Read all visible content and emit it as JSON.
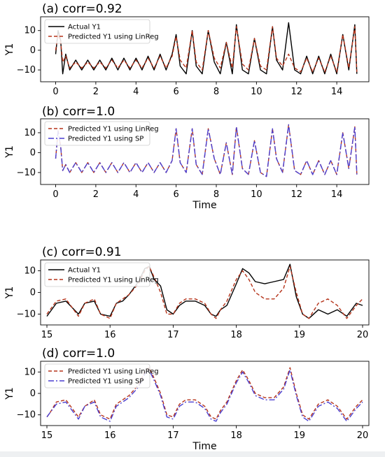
{
  "chart_data": [
    {
      "type": "line",
      "title": "(a) corr=0.92",
      "xlabel": "",
      "ylabel": "Y1",
      "xlim": [
        -0.75,
        15.6
      ],
      "ylim": [
        -16,
        17
      ],
      "xticks": [
        0,
        2,
        4,
        6,
        8,
        10,
        12,
        14
      ],
      "yticks": [
        -10,
        0,
        10
      ],
      "legend_position": "upper-left",
      "series": [
        {
          "name": "Actual Y1",
          "style": "solid",
          "color": "#000000",
          "x": [
            0.0,
            0.12,
            0.25,
            0.35,
            0.5,
            0.7,
            1.0,
            1.3,
            1.6,
            1.9,
            2.2,
            2.5,
            2.8,
            3.1,
            3.4,
            3.7,
            4.0,
            4.3,
            4.6,
            4.9,
            5.2,
            5.5,
            5.8,
            6.0,
            6.2,
            6.5,
            6.8,
            7.0,
            7.3,
            7.6,
            7.9,
            8.2,
            8.5,
            8.8,
            9.0,
            9.3,
            9.6,
            9.9,
            10.2,
            10.5,
            10.8,
            11.0,
            11.3,
            11.6,
            11.9,
            12.2,
            12.5,
            12.8,
            13.1,
            13.4,
            13.7,
            14.0,
            14.3,
            14.6,
            14.9,
            15.0
          ],
          "y": [
            -2,
            10,
            5,
            -12,
            -2,
            -10,
            -5,
            -10,
            -5,
            -10,
            -5,
            -10,
            -4,
            -10,
            -4,
            -10,
            -4,
            -10,
            -3,
            -10,
            -2,
            -10,
            -2,
            8,
            -8,
            -12,
            10,
            -8,
            -12,
            10,
            -6,
            -12,
            4,
            -12,
            13,
            -10,
            -12,
            6,
            -10,
            -12,
            12,
            -5,
            -10,
            14,
            -10,
            -12,
            -3,
            -12,
            -3,
            -12,
            -2,
            -12,
            8,
            -10,
            13,
            -12
          ]
        },
        {
          "name": "Predicted Y1 using LinReg",
          "style": "dashed",
          "color": "#b5331a",
          "x": [
            0.0,
            0.12,
            0.25,
            0.35,
            0.5,
            0.7,
            1.0,
            1.3,
            1.6,
            1.9,
            2.2,
            2.5,
            2.8,
            3.1,
            3.4,
            3.7,
            4.0,
            4.3,
            4.6,
            4.9,
            5.2,
            5.5,
            5.8,
            6.0,
            6.2,
            6.5,
            6.8,
            7.0,
            7.3,
            7.6,
            7.9,
            8.2,
            8.5,
            8.8,
            9.0,
            9.3,
            9.6,
            9.9,
            10.2,
            10.5,
            10.8,
            11.0,
            11.3,
            11.6,
            11.9,
            12.2,
            12.5,
            12.8,
            13.1,
            13.4,
            13.7,
            14.0,
            14.3,
            14.6,
            14.9,
            15.0
          ],
          "y": [
            0,
            8,
            4,
            -6,
            -3,
            -9,
            -6,
            -9,
            -6,
            -9,
            -6,
            -9,
            -5,
            -9,
            -5,
            -9,
            -5,
            -9,
            -4,
            -9,
            -3,
            -9,
            -3,
            7,
            -5,
            -9,
            10,
            -6,
            -10,
            10,
            -4,
            -9,
            4,
            -9,
            12,
            -7,
            -10,
            6,
            -8,
            -10,
            12,
            -4,
            -8,
            -2,
            -9,
            -11,
            -4,
            -11,
            -4,
            -11,
            -3,
            -11,
            8,
            -9,
            12,
            -11
          ]
        }
      ]
    },
    {
      "type": "line",
      "title": "(b) corr=1.0",
      "xlabel": "Time",
      "ylabel": "Y1",
      "xlim": [
        -0.75,
        15.6
      ],
      "ylim": [
        -16,
        17
      ],
      "xticks": [
        0,
        2,
        4,
        6,
        8,
        10,
        12,
        14
      ],
      "yticks": [
        -10,
        0,
        10
      ],
      "legend_position": "upper-left",
      "series": [
        {
          "name": "Predicted Y1 using LinReg",
          "style": "dashed",
          "color": "#b5331a",
          "x": [
            0.0,
            0.12,
            0.25,
            0.35,
            0.5,
            0.7,
            1.0,
            1.3,
            1.6,
            1.9,
            2.2,
            2.5,
            2.8,
            3.1,
            3.4,
            3.7,
            4.0,
            4.3,
            4.6,
            4.9,
            5.2,
            5.5,
            5.8,
            6.0,
            6.2,
            6.5,
            6.8,
            7.0,
            7.3,
            7.6,
            7.9,
            8.2,
            8.5,
            8.8,
            9.0,
            9.3,
            9.6,
            9.9,
            10.2,
            10.5,
            10.8,
            11.0,
            11.3,
            11.6,
            11.9,
            12.2,
            12.5,
            12.8,
            13.1,
            13.4,
            13.7,
            14.0,
            14.3,
            14.6,
            14.9,
            15.0
          ],
          "y": [
            -3,
            11,
            3,
            -9,
            -6,
            -10,
            -5,
            -10,
            -5,
            -10,
            -5,
            -10,
            -5,
            -10,
            -5,
            -10,
            -5,
            -10,
            -5,
            -10,
            -5,
            -10,
            -4,
            12,
            -5,
            -10,
            12,
            -6,
            -11,
            12,
            -3,
            -11,
            5,
            -11,
            13,
            -8,
            -11,
            6,
            -10,
            -12,
            12,
            -3,
            -10,
            14,
            -9,
            -11,
            -4,
            -11,
            -4,
            -11,
            -4,
            -11,
            10,
            -8,
            13,
            -11
          ]
        },
        {
          "name": "Predicted Y1 using SP",
          "style": "dashdot",
          "color": "#4b3fd0",
          "x": [
            0.0,
            0.12,
            0.25,
            0.35,
            0.5,
            0.7,
            1.0,
            1.3,
            1.6,
            1.9,
            2.2,
            2.5,
            2.8,
            3.1,
            3.4,
            3.7,
            4.0,
            4.3,
            4.6,
            4.9,
            5.2,
            5.5,
            5.8,
            6.0,
            6.2,
            6.5,
            6.8,
            7.0,
            7.3,
            7.6,
            7.9,
            8.2,
            8.5,
            8.8,
            9.0,
            9.3,
            9.6,
            9.9,
            10.2,
            10.5,
            10.8,
            11.0,
            11.3,
            11.6,
            11.9,
            12.2,
            12.5,
            12.8,
            13.1,
            13.4,
            13.7,
            14.0,
            14.3,
            14.6,
            14.9,
            15.0
          ],
          "y": [
            -3,
            11,
            3,
            -9,
            -6,
            -10,
            -5,
            -10,
            -5,
            -10,
            -5,
            -10,
            -5,
            -10,
            -5,
            -10,
            -5,
            -10,
            -5,
            -10,
            -5,
            -10,
            -4,
            12,
            -5,
            -10,
            12,
            -6,
            -11,
            12,
            -3,
            -11,
            5,
            -11,
            13,
            -8,
            -11,
            6,
            -10,
            -12,
            12,
            -3,
            -10,
            14,
            -9,
            -11,
            -4,
            -11,
            -4,
            -11,
            -4,
            -11,
            10,
            -8,
            13,
            -11
          ]
        }
      ]
    },
    {
      "type": "line",
      "title": "(c) corr=0.91",
      "xlabel": "",
      "ylabel": "Y1",
      "xlim": [
        14.9,
        20.1
      ],
      "ylim": [
        -15,
        15
      ],
      "xticks": [
        15,
        16,
        17,
        18,
        19,
        20
      ],
      "yticks": [
        -10,
        0,
        10
      ],
      "legend_position": "upper-left",
      "series": [
        {
          "name": "Actual Y1",
          "style": "solid",
          "color": "#000000",
          "x": [
            15.0,
            15.05,
            15.15,
            15.3,
            15.5,
            15.6,
            15.75,
            15.85,
            16.0,
            16.1,
            16.2,
            16.3,
            16.45,
            16.55,
            16.62,
            16.7,
            16.8,
            16.9,
            17.0,
            17.1,
            17.2,
            17.35,
            17.5,
            17.6,
            17.68,
            17.75,
            17.85,
            18.0,
            18.1,
            18.2,
            18.3,
            18.45,
            18.6,
            18.75,
            18.85,
            18.95,
            19.05,
            19.15,
            19.3,
            19.45,
            19.6,
            19.75,
            19.9,
            20.0
          ],
          "y": [
            -11,
            -9,
            -5,
            -4,
            -10,
            -5,
            -4,
            -10,
            -11,
            -5,
            -4,
            -1,
            5,
            11,
            12,
            6,
            3,
            -8,
            -10,
            -6,
            -4,
            -4,
            -6,
            -10,
            -11,
            -8,
            -6,
            4,
            11,
            9,
            5,
            4,
            5,
            6,
            13,
            -2,
            -10,
            -12,
            -8,
            -10,
            -8,
            -11,
            -5,
            -6
          ]
        },
        {
          "name": "Predicted Y1 using LinReg",
          "style": "dashed",
          "color": "#b5331a",
          "x": [
            15.0,
            15.05,
            15.15,
            15.3,
            15.5,
            15.6,
            15.75,
            15.85,
            16.0,
            16.1,
            16.2,
            16.3,
            16.45,
            16.55,
            16.62,
            16.7,
            16.8,
            16.9,
            17.0,
            17.1,
            17.2,
            17.35,
            17.5,
            17.6,
            17.68,
            17.75,
            17.85,
            18.0,
            18.1,
            18.2,
            18.3,
            18.45,
            18.6,
            18.75,
            18.85,
            18.95,
            19.05,
            19.15,
            19.3,
            19.45,
            19.6,
            19.75,
            19.9,
            20.0
          ],
          "y": [
            -10,
            -8,
            -4,
            -3,
            -11,
            -5,
            -3,
            -10,
            -12,
            -5,
            -3,
            -1,
            4,
            10,
            12,
            7,
            0,
            -10,
            -10,
            -5,
            -3,
            -3,
            -5,
            -10,
            -12,
            -8,
            -4,
            6,
            10,
            6,
            0,
            -3,
            -3,
            2,
            12,
            0,
            -10,
            -12,
            -5,
            -3,
            -6,
            -12,
            -6,
            -3
          ]
        }
      ]
    },
    {
      "type": "line",
      "title": "(d) corr=1.0",
      "xlabel": "Time",
      "ylabel": "Y1",
      "xlim": [
        14.9,
        20.1
      ],
      "ylim": [
        -15,
        15
      ],
      "xticks": [
        15,
        16,
        17,
        18,
        19,
        20
      ],
      "yticks": [
        -10,
        0,
        10
      ],
      "legend_position": "upper-left",
      "series": [
        {
          "name": "Predicted Y1 using LinReg",
          "style": "dashed",
          "color": "#b5331a",
          "x": [
            15.0,
            15.05,
            15.15,
            15.3,
            15.5,
            15.6,
            15.75,
            15.85,
            16.0,
            16.1,
            16.2,
            16.3,
            16.45,
            16.55,
            16.62,
            16.7,
            16.8,
            16.9,
            17.0,
            17.1,
            17.2,
            17.35,
            17.5,
            17.6,
            17.68,
            17.75,
            17.85,
            18.0,
            18.1,
            18.2,
            18.3,
            18.45,
            18.6,
            18.75,
            18.85,
            18.95,
            19.05,
            19.15,
            19.3,
            19.45,
            19.6,
            19.75,
            19.9,
            20.0
          ],
          "y": [
            -11,
            -9,
            -4,
            -3,
            -11,
            -6,
            -3,
            -10,
            -12,
            -5,
            -3,
            -1,
            4,
            10,
            12,
            7,
            0,
            -10,
            -11,
            -5,
            -3,
            -3,
            -6,
            -11,
            -12,
            -8,
            -4,
            6,
            11,
            6,
            0,
            -2,
            -2,
            3,
            12,
            0,
            -10,
            -12,
            -5,
            -3,
            -6,
            -12,
            -6,
            -3
          ]
        },
        {
          "name": "Predicted Y1 using SP",
          "style": "dashdot",
          "color": "#4b3fd0",
          "x": [
            15.0,
            15.05,
            15.15,
            15.3,
            15.5,
            15.6,
            15.75,
            15.85,
            16.0,
            16.1,
            16.2,
            16.3,
            16.45,
            16.55,
            16.62,
            16.7,
            16.8,
            16.9,
            17.0,
            17.1,
            17.2,
            17.35,
            17.5,
            17.6,
            17.68,
            17.75,
            17.85,
            18.0,
            18.1,
            18.2,
            18.3,
            18.45,
            18.6,
            18.75,
            18.85,
            18.95,
            19.05,
            19.15,
            19.3,
            19.45,
            19.6,
            19.75,
            19.9,
            20.0
          ],
          "y": [
            -11,
            -9,
            -5,
            -4,
            -12,
            -6,
            -4,
            -11,
            -13,
            -6,
            -4,
            -2,
            3,
            9,
            11,
            6,
            -1,
            -11,
            -12,
            -6,
            -4,
            -4,
            -7,
            -12,
            -13,
            -9,
            -5,
            5,
            10,
            5,
            -1,
            -3,
            -3,
            2,
            11,
            -1,
            -11,
            -13,
            -6,
            -4,
            -7,
            -13,
            -7,
            -4
          ]
        }
      ]
    }
  ]
}
